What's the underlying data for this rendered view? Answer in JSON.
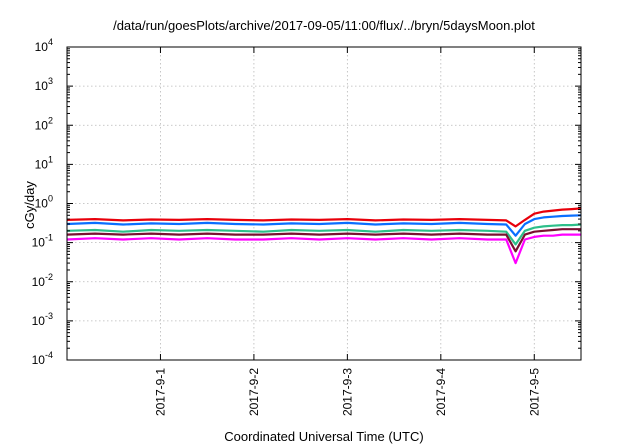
{
  "chart_data": {
    "type": "line",
    "title": "/data/run/goesPlots/archive/2017-09-05/11:00/flux/../bryn/5daysMoon.plot",
    "xlabel": "Coordinated Universal Time (UTC)",
    "ylabel": "cGy/day",
    "yscale": "log",
    "ylim": [
      0.0001,
      10000
    ],
    "xlim": [
      -1.0,
      4.5
    ],
    "x_unit_note_is_layout": false,
    "yticks": [
      {
        "base": "10",
        "exp": "-4",
        "value": 0.0001
      },
      {
        "base": "10",
        "exp": "-3",
        "value": 0.001
      },
      {
        "base": "10",
        "exp": "-2",
        "value": 0.01
      },
      {
        "base": "10",
        "exp": "-1",
        "value": 0.1
      },
      {
        "base": "10",
        "exp": "0",
        "value": 1
      },
      {
        "base": "10",
        "exp": "1",
        "value": 10
      },
      {
        "base": "10",
        "exp": "2",
        "value": 100
      },
      {
        "base": "10",
        "exp": "3",
        "value": 1000
      },
      {
        "base": "10",
        "exp": "4",
        "value": 10000
      }
    ],
    "xticks": [
      {
        "label": "2017-9-1",
        "value": 0
      },
      {
        "label": "2017-9-2",
        "value": 1
      },
      {
        "label": "2017-9-3",
        "value": 2
      },
      {
        "label": "2017-9-4",
        "value": 3
      },
      {
        "label": "2017-9-5",
        "value": 4
      }
    ],
    "grid": true,
    "colors": {
      "frame": "#000000",
      "grid": "#b8b8b8"
    },
    "series": [
      {
        "color": "#e8000b",
        "x": [
          -1.0,
          -0.7,
          -0.4,
          -0.1,
          0.2,
          0.5,
          0.8,
          1.1,
          1.4,
          1.7,
          2.0,
          2.3,
          2.6,
          2.9,
          3.2,
          3.5,
          3.7,
          3.8,
          3.9,
          4.0,
          4.1,
          4.2,
          4.3,
          4.4,
          4.5
        ],
        "y": [
          0.38,
          0.4,
          0.37,
          0.39,
          0.38,
          0.4,
          0.38,
          0.37,
          0.39,
          0.38,
          0.4,
          0.37,
          0.39,
          0.38,
          0.4,
          0.38,
          0.37,
          0.26,
          0.38,
          0.55,
          0.62,
          0.66,
          0.7,
          0.72,
          0.75
        ]
      },
      {
        "color": "#0a6fff",
        "x": [
          -1.0,
          -0.7,
          -0.4,
          -0.1,
          0.2,
          0.5,
          0.8,
          1.1,
          1.4,
          1.7,
          2.0,
          2.3,
          2.6,
          2.9,
          3.2,
          3.5,
          3.7,
          3.8,
          3.9,
          4.0,
          4.1,
          4.2,
          4.3,
          4.4,
          4.5
        ],
        "y": [
          0.3,
          0.32,
          0.29,
          0.31,
          0.3,
          0.32,
          0.3,
          0.29,
          0.31,
          0.3,
          0.32,
          0.29,
          0.31,
          0.3,
          0.32,
          0.3,
          0.29,
          0.15,
          0.3,
          0.4,
          0.44,
          0.46,
          0.48,
          0.49,
          0.5
        ]
      },
      {
        "color": "#2dbf8a",
        "x": [
          -1.0,
          -0.7,
          -0.4,
          -0.1,
          0.2,
          0.5,
          0.8,
          1.1,
          1.4,
          1.7,
          2.0,
          2.3,
          2.6,
          2.9,
          3.2,
          3.5,
          3.7,
          3.8,
          3.9,
          4.0,
          4.1,
          4.2,
          4.3,
          4.4,
          4.5
        ],
        "y": [
          0.2,
          0.21,
          0.19,
          0.21,
          0.2,
          0.21,
          0.2,
          0.19,
          0.21,
          0.2,
          0.21,
          0.19,
          0.21,
          0.2,
          0.21,
          0.2,
          0.19,
          0.09,
          0.2,
          0.24,
          0.26,
          0.27,
          0.28,
          0.28,
          0.29
        ]
      },
      {
        "color": "#7a1030",
        "x": [
          -1.0,
          -0.7,
          -0.4,
          -0.1,
          0.2,
          0.5,
          0.8,
          1.1,
          1.4,
          1.7,
          2.0,
          2.3,
          2.6,
          2.9,
          3.2,
          3.5,
          3.7,
          3.8,
          3.9,
          4.0,
          4.1,
          4.2,
          4.3,
          4.4,
          4.5
        ],
        "y": [
          0.16,
          0.17,
          0.16,
          0.17,
          0.16,
          0.17,
          0.16,
          0.16,
          0.17,
          0.16,
          0.17,
          0.16,
          0.17,
          0.16,
          0.17,
          0.16,
          0.16,
          0.06,
          0.16,
          0.19,
          0.2,
          0.21,
          0.22,
          0.22,
          0.22
        ]
      },
      {
        "color": "#ff00ff",
        "x": [
          -1.0,
          -0.7,
          -0.4,
          -0.1,
          0.2,
          0.5,
          0.8,
          1.1,
          1.4,
          1.7,
          2.0,
          2.3,
          2.6,
          2.9,
          3.2,
          3.5,
          3.7,
          3.8,
          3.9,
          4.0,
          4.1,
          4.2,
          4.3,
          4.4,
          4.5
        ],
        "y": [
          0.12,
          0.13,
          0.12,
          0.13,
          0.12,
          0.13,
          0.12,
          0.12,
          0.13,
          0.12,
          0.13,
          0.12,
          0.13,
          0.12,
          0.13,
          0.12,
          0.12,
          0.03,
          0.12,
          0.14,
          0.15,
          0.15,
          0.16,
          0.16,
          0.16
        ]
      }
    ]
  }
}
